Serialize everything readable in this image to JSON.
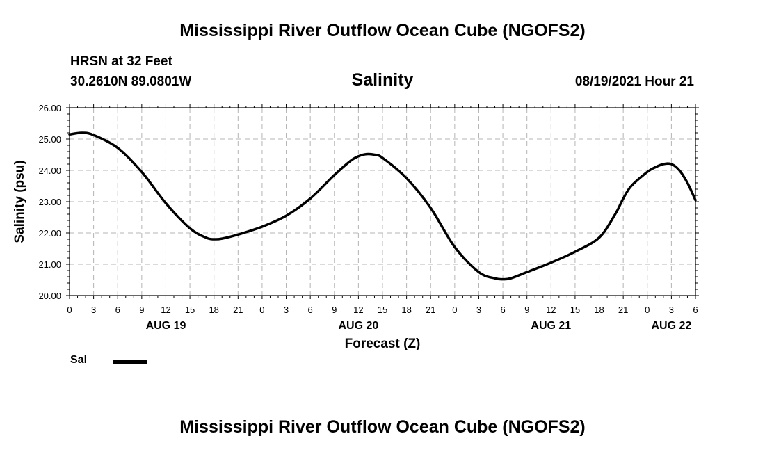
{
  "header": {
    "main_title": "Mississippi River Outflow Ocean Cube (NGOFS2)",
    "station": "HRSN at 32 Feet",
    "coordinates": "30.2610N  89.0801W",
    "timestamp": "08/19/2021 Hour 21"
  },
  "footer": {
    "title": "Mississippi River Outflow Ocean Cube (NGOFS2)"
  },
  "legend": {
    "label": "Sal",
    "color": "#000000"
  },
  "chart_data": {
    "type": "line",
    "title": "Salinity",
    "xlabel": "Forecast (Z)",
    "ylabel": "Salinity (psu)",
    "xlim": [
      0,
      78
    ],
    "ylim": [
      20.0,
      26.0
    ],
    "y_ticks": [
      "20.00",
      "21.00",
      "22.00",
      "23.00",
      "24.00",
      "25.00",
      "26.00"
    ],
    "x_tick_labels": [
      "0",
      "3",
      "6",
      "9",
      "12",
      "15",
      "18",
      "21",
      "0",
      "3",
      "6",
      "9",
      "12",
      "15",
      "18",
      "21",
      "0",
      "3",
      "6",
      "9",
      "12",
      "15",
      "18",
      "21",
      "0",
      "3",
      "6"
    ],
    "day_labels": [
      {
        "label": "AUG 19",
        "hour": 12
      },
      {
        "label": "AUG 20",
        "hour": 36
      },
      {
        "label": "AUG 21",
        "hour": 60
      },
      {
        "label": "AUG 22",
        "hour": 75
      }
    ],
    "grid": true,
    "series": [
      {
        "name": "Sal",
        "x": [
          0,
          1.5,
          3,
          6,
          9,
          12,
          15,
          17,
          18,
          19,
          21,
          24,
          27,
          30,
          33,
          35,
          36,
          37,
          38,
          39,
          42,
          45,
          48,
          51,
          53,
          54,
          55,
          57,
          60,
          63,
          66,
          68,
          69,
          70,
          72,
          73,
          74,
          75,
          76,
          77,
          78
        ],
        "y": [
          25.15,
          25.2,
          25.13,
          24.72,
          23.95,
          22.95,
          22.15,
          21.85,
          21.8,
          21.82,
          21.95,
          22.2,
          22.55,
          23.1,
          23.85,
          24.3,
          24.45,
          24.52,
          24.5,
          24.4,
          23.75,
          22.8,
          21.55,
          20.75,
          20.55,
          20.52,
          20.55,
          20.75,
          21.05,
          21.4,
          21.85,
          22.6,
          23.1,
          23.5,
          23.95,
          24.1,
          24.2,
          24.2,
          24.0,
          23.6,
          23.05
        ]
      }
    ]
  }
}
